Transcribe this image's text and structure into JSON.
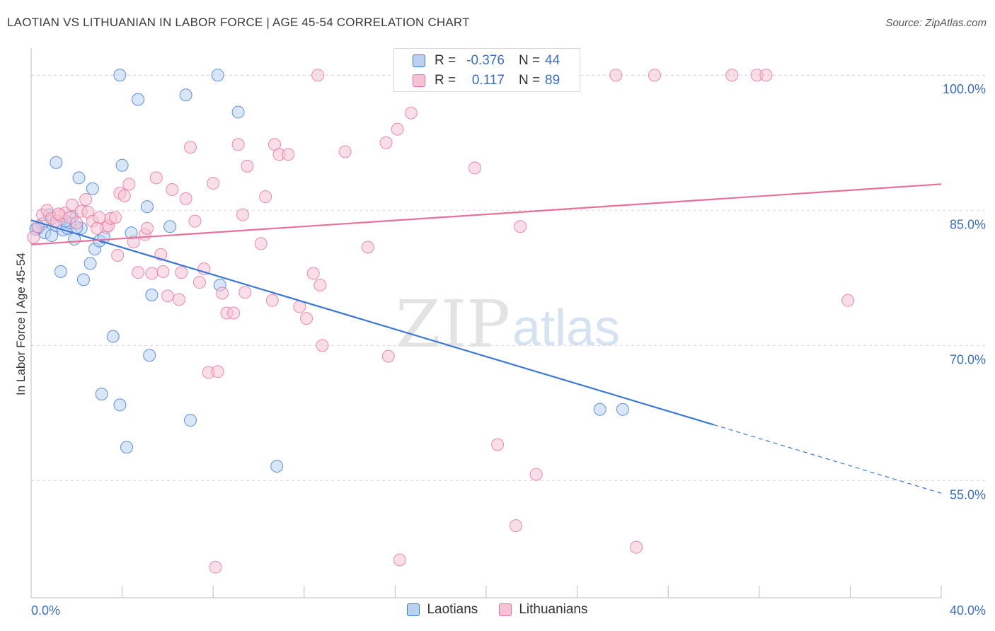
{
  "header": {
    "title": "LAOTIAN VS LITHUANIAN IN LABOR FORCE | AGE 45-54 CORRELATION CHART",
    "source": "Source: ZipAtlas.com"
  },
  "colors": {
    "blue": "#3a78d6",
    "blue_fill": "#b9d2f3",
    "pink": "#e8709a",
    "pink_fill": "#f6c3d4",
    "value_text": "#3a6fc4",
    "grid": "#d9d9d9"
  },
  "correlation_box": {
    "rows": [
      {
        "r_label": "R =",
        "r_value": "-0.376",
        "n_label": "N =",
        "n_value": "44"
      },
      {
        "r_label": "R =",
        "r_value": "0.117",
        "n_label": "N =",
        "n_value": "89"
      }
    ]
  },
  "legend": {
    "items": [
      {
        "label": "Laotians"
      },
      {
        "label": "Lithuanians"
      }
    ]
  },
  "watermark": {
    "part1": "ZIP",
    "part2": "atlas"
  },
  "chart_data": {
    "type": "scatter",
    "ylabel": "In Labor Force | Age 45-54",
    "xlim": [
      0,
      40
    ],
    "ylim": [
      42,
      103
    ],
    "x_tick_labels": [
      "0.0%",
      "40.0%"
    ],
    "y_ticks": [
      55,
      70,
      85,
      100
    ],
    "y_tick_labels": [
      "55.0%",
      "70.0%",
      "85.0%",
      "100.0%"
    ],
    "grid": true,
    "legend_position": "bottom-center",
    "series": [
      {
        "name": "Laotians",
        "color": "#3a78d6",
        "fill": "#b9d2f3",
        "trend": {
          "x0": 0,
          "y0": 83.9,
          "x1": 30,
          "y1": 61.2,
          "dash_to_x": 40,
          "dash_to_y": 53.6
        },
        "points": [
          [
            0.3,
            83.0
          ],
          [
            0.5,
            83.5
          ],
          [
            0.6,
            82.5
          ],
          [
            0.8,
            84.5
          ],
          [
            0.9,
            82.2
          ],
          [
            1.1,
            83.3
          ],
          [
            1.1,
            90.3
          ],
          [
            1.3,
            78.2
          ],
          [
            1.4,
            82.8
          ],
          [
            1.6,
            83.0
          ],
          [
            1.7,
            83.6
          ],
          [
            1.8,
            84.3
          ],
          [
            1.9,
            81.8
          ],
          [
            2.1,
            88.6
          ],
          [
            2.2,
            83.0
          ],
          [
            2.3,
            77.3
          ],
          [
            2.6,
            79.1
          ],
          [
            2.7,
            87.4
          ],
          [
            2.8,
            80.7
          ],
          [
            3.0,
            81.6
          ],
          [
            3.1,
            64.6
          ],
          [
            3.2,
            82.0
          ],
          [
            3.6,
            71.0
          ],
          [
            3.9,
            100.0
          ],
          [
            3.9,
            63.4
          ],
          [
            4.0,
            90.0
          ],
          [
            4.2,
            58.7
          ],
          [
            4.4,
            82.5
          ],
          [
            4.7,
            97.3
          ],
          [
            5.1,
            85.4
          ],
          [
            5.2,
            68.9
          ],
          [
            5.3,
            75.6
          ],
          [
            6.1,
            83.2
          ],
          [
            6.8,
            97.8
          ],
          [
            7.0,
            61.7
          ],
          [
            8.2,
            100.0
          ],
          [
            8.3,
            76.7
          ],
          [
            9.1,
            95.9
          ],
          [
            10.8,
            56.6
          ],
          [
            25.0,
            62.9
          ],
          [
            26.0,
            62.9
          ],
          [
            0.2,
            82.9
          ],
          [
            2.0,
            83.1
          ],
          [
            1.5,
            83.8
          ]
        ]
      },
      {
        "name": "Lithuanians",
        "color": "#e8709a",
        "fill": "#f6c3d4",
        "trend": {
          "x0": 0,
          "y0": 81.2,
          "x1": 40,
          "y1": 87.9
        },
        "points": [
          [
            0.1,
            82.0
          ],
          [
            0.5,
            84.5
          ],
          [
            0.7,
            85.0
          ],
          [
            0.9,
            84.1
          ],
          [
            1.1,
            83.8
          ],
          [
            1.3,
            84.4
          ],
          [
            1.5,
            84.7
          ],
          [
            1.7,
            84.2
          ],
          [
            1.8,
            85.6
          ],
          [
            2.0,
            83.6
          ],
          [
            2.2,
            84.9
          ],
          [
            2.4,
            86.2
          ],
          [
            2.5,
            84.8
          ],
          [
            2.7,
            83.8
          ],
          [
            3.0,
            84.2
          ],
          [
            3.3,
            83.1
          ],
          [
            3.4,
            83.3
          ],
          [
            3.5,
            84.1
          ],
          [
            3.8,
            80.0
          ],
          [
            3.9,
            86.9
          ],
          [
            4.1,
            86.6
          ],
          [
            4.3,
            87.9
          ],
          [
            4.5,
            81.5
          ],
          [
            4.7,
            78.1
          ],
          [
            5.0,
            82.3
          ],
          [
            5.1,
            83.0
          ],
          [
            5.3,
            78.0
          ],
          [
            5.5,
            88.6
          ],
          [
            5.7,
            80.1
          ],
          [
            5.8,
            78.2
          ],
          [
            6.0,
            75.5
          ],
          [
            6.2,
            87.3
          ],
          [
            6.5,
            75.1
          ],
          [
            6.6,
            78.1
          ],
          [
            6.8,
            86.3
          ],
          [
            7.0,
            92.0
          ],
          [
            7.2,
            83.8
          ],
          [
            7.4,
            77.0
          ],
          [
            7.6,
            78.5
          ],
          [
            7.8,
            67.0
          ],
          [
            8.0,
            88.0
          ],
          [
            8.1,
            45.4
          ],
          [
            8.2,
            67.1
          ],
          [
            8.4,
            75.8
          ],
          [
            8.6,
            73.6
          ],
          [
            8.9,
            73.6
          ],
          [
            9.1,
            92.3
          ],
          [
            9.3,
            84.5
          ],
          [
            9.4,
            75.9
          ],
          [
            9.5,
            89.9
          ],
          [
            10.1,
            81.3
          ],
          [
            10.3,
            86.5
          ],
          [
            10.6,
            75.0
          ],
          [
            10.7,
            92.3
          ],
          [
            10.9,
            91.2
          ],
          [
            11.3,
            91.2
          ],
          [
            11.8,
            74.3
          ],
          [
            12.1,
            73.0
          ],
          [
            12.4,
            78.0
          ],
          [
            12.7,
            76.7
          ],
          [
            12.8,
            70.0
          ],
          [
            12.6,
            100.0
          ],
          [
            13.8,
            91.5
          ],
          [
            14.8,
            80.9
          ],
          [
            15.6,
            92.5
          ],
          [
            15.7,
            68.8
          ],
          [
            16.1,
            94.0
          ],
          [
            16.2,
            46.2
          ],
          [
            16.7,
            95.8
          ],
          [
            17.1,
            100.0
          ],
          [
            18.8,
            100.0
          ],
          [
            19.5,
            89.7
          ],
          [
            20.5,
            59.0
          ],
          [
            21.3,
            50.0
          ],
          [
            21.5,
            83.2
          ],
          [
            22.2,
            55.7
          ],
          [
            23.0,
            100.0
          ],
          [
            23.7,
            100.0
          ],
          [
            25.7,
            100.0
          ],
          [
            26.6,
            47.6
          ],
          [
            27.4,
            100.0
          ],
          [
            30.8,
            100.0
          ],
          [
            31.9,
            100.0
          ],
          [
            32.3,
            100.0
          ],
          [
            35.9,
            75.0
          ],
          [
            3.7,
            84.2
          ],
          [
            2.9,
            83.0
          ],
          [
            0.3,
            83.2
          ],
          [
            1.2,
            84.6
          ]
        ]
      }
    ]
  }
}
